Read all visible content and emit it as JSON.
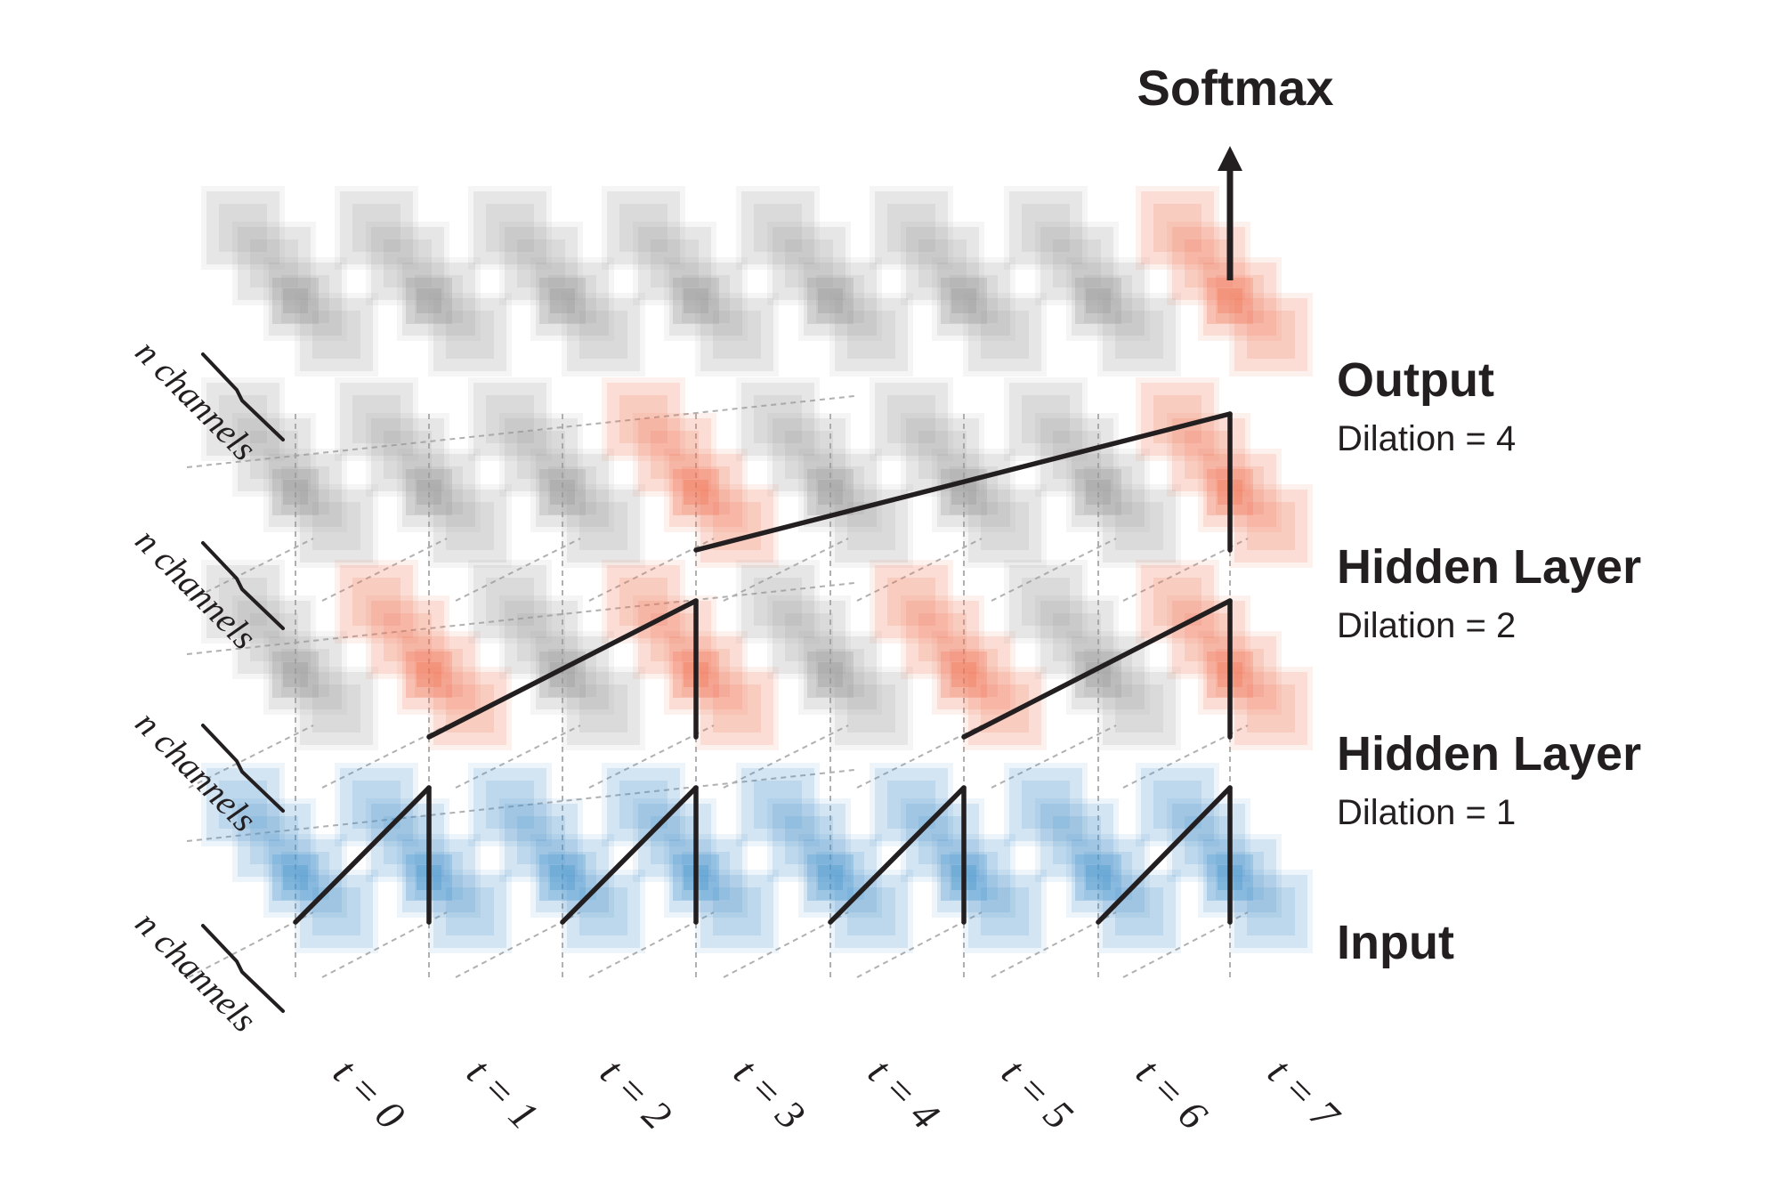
{
  "colors": {
    "input": "#4a98cf",
    "active": "#f0785a",
    "inactive": "#9a9a9a",
    "line": "#231f20",
    "dashed": "#b0b0b0"
  },
  "softmax_label": "Softmax",
  "layers": [
    {
      "id": "output",
      "title": "Output",
      "subtitle": "Dilation = 4",
      "channels_label": "n channels",
      "active_steps": [
        7
      ]
    },
    {
      "id": "hidden2",
      "title": "Hidden Layer",
      "subtitle": "Dilation = 2",
      "channels_label": "n channels",
      "active_steps": [
        3,
        7
      ]
    },
    {
      "id": "hidden1",
      "title": "Hidden Layer",
      "subtitle": "Dilation = 1",
      "channels_label": "n channels",
      "active_steps": [
        1,
        3,
        5,
        7
      ]
    },
    {
      "id": "input",
      "title": "Input",
      "subtitle": "",
      "channels_label": "n channels",
      "active_steps": []
    }
  ],
  "time_steps": [
    "t = 0",
    "t = 1",
    "t = 2",
    "t = 3",
    "t = 4",
    "t = 5",
    "t = 6",
    "t = 7"
  ],
  "connections": [
    {
      "from_layer": "input",
      "from_step": 0,
      "to_layer": "hidden1",
      "to_step": 1
    },
    {
      "from_layer": "input",
      "from_step": 1,
      "to_layer": "hidden1",
      "to_step": 1
    },
    {
      "from_layer": "input",
      "from_step": 2,
      "to_layer": "hidden1",
      "to_step": 3
    },
    {
      "from_layer": "input",
      "from_step": 3,
      "to_layer": "hidden1",
      "to_step": 3
    },
    {
      "from_layer": "input",
      "from_step": 4,
      "to_layer": "hidden1",
      "to_step": 5
    },
    {
      "from_layer": "input",
      "from_step": 5,
      "to_layer": "hidden1",
      "to_step": 5
    },
    {
      "from_layer": "input",
      "from_step": 6,
      "to_layer": "hidden1",
      "to_step": 7
    },
    {
      "from_layer": "input",
      "from_step": 7,
      "to_layer": "hidden1",
      "to_step": 7
    },
    {
      "from_layer": "hidden1",
      "from_step": 1,
      "to_layer": "hidden2",
      "to_step": 3
    },
    {
      "from_layer": "hidden1",
      "from_step": 3,
      "to_layer": "hidden2",
      "to_step": 3
    },
    {
      "from_layer": "hidden1",
      "from_step": 5,
      "to_layer": "hidden2",
      "to_step": 7
    },
    {
      "from_layer": "hidden1",
      "from_step": 7,
      "to_layer": "hidden2",
      "to_step": 7
    },
    {
      "from_layer": "hidden2",
      "from_step": 3,
      "to_layer": "output",
      "to_step": 7
    },
    {
      "from_layer": "hidden2",
      "from_step": 7,
      "to_layer": "output",
      "to_step": 7
    }
  ]
}
